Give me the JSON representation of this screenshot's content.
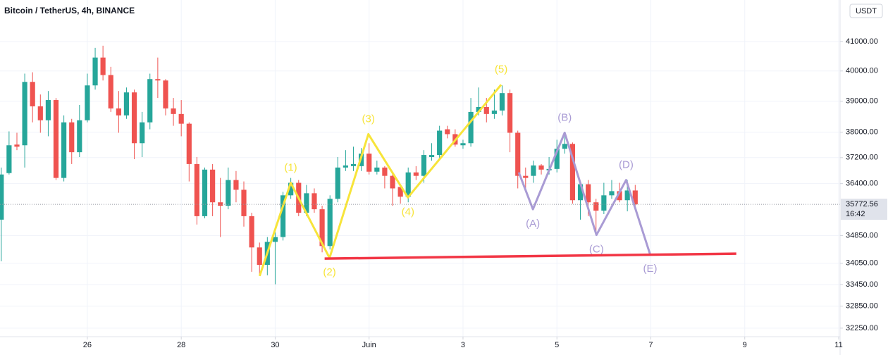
{
  "chart_data": {
    "type": "candlestick",
    "title": "Bitcoin / TetherUS, 4h, BINANCE",
    "currency": "USDT",
    "countdown": "16:42",
    "up_color": "#26a69a",
    "down_color": "#ef5350",
    "log_scale": true,
    "grid": true,
    "xlim": [
      24.14,
      42.03
    ],
    "ylim": [
      32020,
      42450
    ],
    "xticks": [
      26,
      28,
      30,
      {
        "value": 32,
        "label": "Juin"
      },
      {
        "value": 34,
        "label": "3"
      },
      {
        "value": 36,
        "label": "5"
      },
      {
        "value": 38,
        "label": "7"
      },
      {
        "value": 40,
        "label": "9"
      },
      {
        "value": 42,
        "label": "11"
      }
    ],
    "yticks": [
      {
        "value": 41000,
        "label": "41000.00"
      },
      {
        "value": 40000,
        "label": "40000.00"
      },
      {
        "value": 39000,
        "label": "39000.00"
      },
      {
        "value": 38000,
        "label": "38000.00"
      },
      {
        "value": 37200,
        "label": "37200.00"
      },
      {
        "value": 36400,
        "label": "36400.00"
      },
      {
        "value": 34850,
        "label": "34850.00"
      },
      {
        "value": 34050,
        "label": "34050.00"
      },
      {
        "value": 33450,
        "label": "33450.00"
      },
      {
        "value": 32850,
        "label": "32850.00"
      },
      {
        "value": 32250,
        "label": "32250.00"
      }
    ],
    "x": [
      24.167,
      24.333,
      24.5,
      24.667,
      24.833,
      25,
      25.167,
      25.333,
      25.5,
      25.667,
      25.833,
      26,
      26.167,
      26.333,
      26.5,
      26.667,
      26.833,
      27,
      27.167,
      27.333,
      27.5,
      27.667,
      27.833,
      28,
      28.167,
      28.333,
      28.5,
      28.667,
      28.833,
      29,
      29.167,
      29.333,
      29.5,
      29.667,
      29.833,
      30,
      30.167,
      30.333,
      30.5,
      30.667,
      30.833,
      31,
      31.167,
      31.333,
      31.5,
      31.667,
      31.833,
      32,
      32.167,
      32.333,
      32.5,
      32.667,
      32.833,
      33,
      33.167,
      33.333,
      33.5,
      33.667,
      33.833,
      34,
      34.167,
      34.333,
      34.5,
      34.667,
      34.833,
      35,
      35.167,
      35.333,
      35.5,
      35.667,
      35.833,
      36,
      36.167,
      36.333,
      36.5,
      36.667,
      36.833,
      37,
      37.167,
      37.333,
      37.5,
      37.667
    ],
    "open": [
      35317,
      36722,
      37609,
      37587,
      39636,
      38833,
      38383,
      39038,
      36573,
      38316,
      37369,
      38383,
      39520,
      40453,
      39864,
      38765,
      38540,
      39289,
      37653,
      38316,
      39730,
      39683,
      38765,
      38585,
      38272,
      37001,
      35420,
      36829,
      35834,
      35731,
      36509,
      36212,
      35420,
      34505,
      34006,
      34666,
      34807,
      36044,
      36424,
      35523,
      36107,
      35626,
      34545,
      35939,
      36893,
      36936,
      36936,
      37325,
      36765,
      36893,
      36637,
      36296,
      36002,
      36743,
      36637,
      37217,
      37282,
      38094,
      37939,
      37587,
      37653,
      38652,
      38810,
      38585,
      38697,
      39266,
      37983,
      36637,
      36637,
      36958,
      36808,
      36850,
      37477,
      37631,
      35897,
      36381,
      35834,
      35585,
      36044,
      36170,
      35897,
      36191
    ],
    "high": [
      36893,
      38028,
      37983,
      39911,
      39957,
      39220,
      39335,
      39106,
      38540,
      38428,
      38878,
      39911,
      40784,
      40856,
      40140,
      39335,
      39451,
      39381,
      38652,
      39911,
      40453,
      39730,
      39106,
      39038,
      38316,
      37217,
      36893,
      37001,
      36573,
      36893,
      36786,
      36466,
      35523,
      34646,
      34807,
      35010,
      36149,
      36573,
      36509,
      36360,
      36254,
      35731,
      36044,
      37217,
      37434,
      37543,
      37499,
      37653,
      37108,
      36936,
      36722,
      36360,
      36893,
      36936,
      37434,
      37653,
      38205,
      38205,
      38094,
      37762,
      39106,
      39451,
      39106,
      39381,
      39520,
      39381,
      38050,
      36893,
      37108,
      37001,
      37217,
      37762,
      37872,
      37675,
      36466,
      36509,
      35939,
      36424,
      36509,
      36424,
      36509,
      36360
    ],
    "low": [
      34105,
      36679,
      37434,
      36893,
      38316,
      37983,
      37872,
      36509,
      36466,
      37001,
      37217,
      38316,
      39381,
      39683,
      38652,
      37983,
      38428,
      37152,
      37217,
      38094,
      39106,
      38540,
      38205,
      37872,
      36466,
      35173,
      35358,
      35420,
      34807,
      35626,
      35834,
      35112,
      33808,
      33710,
      33710,
      33456,
      34706,
      35939,
      35420,
      35420,
      35523,
      34364,
      34445,
      35834,
      36786,
      36786,
      36786,
      36679,
      36679,
      36254,
      35731,
      35793,
      35834,
      36509,
      36424,
      37108,
      37173,
      37806,
      37543,
      37477,
      37543,
      38540,
      38316,
      38428,
      38540,
      37369,
      36254,
      36149,
      36424,
      36679,
      36679,
      36743,
      37325,
      35793,
      35317,
      35420,
      34868,
      35482,
      35939,
      35834,
      35564,
      35731
    ],
    "close": [
      36679,
      37587,
      37543,
      39636,
      38833,
      38383,
      39038,
      36573,
      38316,
      37369,
      38383,
      39520,
      40453,
      39864,
      38765,
      38540,
      39289,
      37653,
      38316,
      39730,
      39683,
      38765,
      38585,
      38272,
      37001,
      35420,
      36829,
      35834,
      35731,
      36509,
      36212,
      35420,
      34505,
      34006,
      34666,
      34807,
      36044,
      36424,
      35523,
      36107,
      35626,
      34545,
      35939,
      36893,
      36958,
      37001,
      37325,
      36765,
      36893,
      36637,
      36254,
      36002,
      36743,
      36637,
      37282,
      37282,
      38050,
      37939,
      37609,
      37653,
      38652,
      38810,
      38585,
      38697,
      39266,
      37983,
      36637,
      36573,
      36958,
      36829,
      36850,
      37477,
      37631,
      35897,
      36381,
      35834,
      35585,
      36044,
      36170,
      35897,
      36191,
      35772.56
    ],
    "waves": [
      {
        "color": "#f7e43a",
        "x": [
          29.669,
          30.331,
          31.158,
          31.985,
          32.827,
          34.812
        ],
        "y": [
          33690,
          36424,
          34204,
          37939,
          35981,
          39543
        ],
        "labels": [
          null,
          "(1)",
          "(2)",
          "(3)",
          "(4)",
          "(5)"
        ]
      },
      {
        "color": "#a99bd4",
        "x": [
          35.188,
          35.489,
          36.165,
          36.842,
          37.474,
          37.985
        ],
        "y": [
          36743,
          35626,
          37983,
          34868,
          36509,
          34304
        ],
        "labels": [
          null,
          "(A)",
          "(B)",
          "(C)",
          "(D)",
          "(E)"
        ]
      }
    ],
    "support_line": {
      "color": "#f23645",
      "x": [
        31.053,
        39.82
      ],
      "y": [
        34184,
        34325
      ]
    }
  }
}
